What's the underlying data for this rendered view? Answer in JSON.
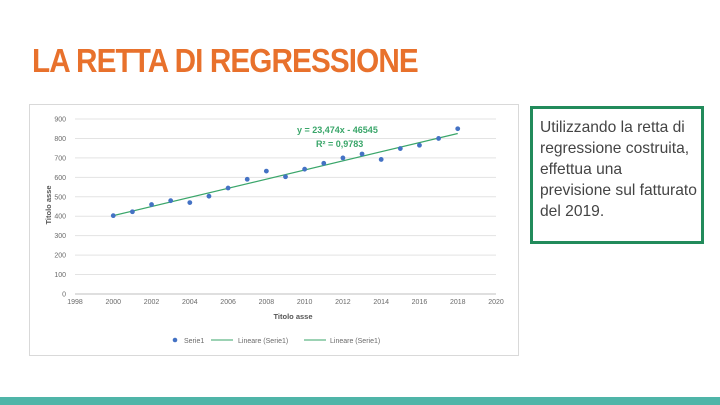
{
  "slide": {
    "title": "LA RETTA DI REGRESSIONE",
    "title_color": "#e8712c",
    "callout_text": "Utilizzando la retta di regressione costruita, effettua una previsione sul fatturato del 2019.",
    "callout_border_color": "#228b5b",
    "bottom_bar_color": "#4fb5a8"
  },
  "chart_data": {
    "type": "scatter",
    "title": "",
    "xlabel": "Titolo asse",
    "ylabel": "Titolo asse",
    "xlim": [
      1998,
      2020
    ],
    "ylim": [
      0,
      900
    ],
    "x_ticks": [
      1998,
      2000,
      2002,
      2004,
      2006,
      2008,
      2010,
      2012,
      2014,
      2016,
      2018,
      2020
    ],
    "y_ticks": [
      0,
      100,
      200,
      300,
      400,
      500,
      600,
      700,
      800,
      900
    ],
    "grid": true,
    "series": [
      {
        "name": "Serie1",
        "color": "#4472c4",
        "x": [
          2000,
          2001,
          2002,
          2003,
          2004,
          2005,
          2006,
          2007,
          2008,
          2009,
          2010,
          2011,
          2012,
          2013,
          2014,
          2015,
          2016,
          2017,
          2018
        ],
        "y": [
          403,
          423,
          460,
          480,
          470,
          503,
          545,
          590,
          632,
          603,
          642,
          672,
          700,
          720,
          692,
          748,
          765,
          800,
          850
        ]
      }
    ],
    "trendline": {
      "legend_labels": [
        "Lineare (Serie1)",
        "Lineare (Serie1)"
      ],
      "color": "#3aa66a",
      "slope": 23.474,
      "intercept": -46545,
      "x_range": [
        2000,
        2018
      ],
      "equation_text": "y = 23,474x - 46545",
      "r2_text": "R² = 0,9783",
      "equation_color": "#3aa66a"
    },
    "legend_placement": "bottom"
  }
}
